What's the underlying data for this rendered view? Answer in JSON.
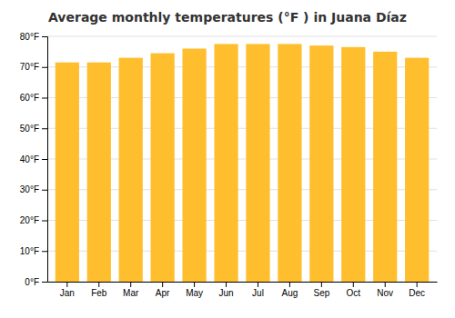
{
  "chart_data": {
    "type": "bar",
    "title": "Average monthly temperatures (°F ) in Juana Díaz",
    "categories": [
      "Jan",
      "Feb",
      "Mar",
      "Apr",
      "May",
      "Jun",
      "Jul",
      "Aug",
      "Sep",
      "Oct",
      "Nov",
      "Dec"
    ],
    "values": [
      71.5,
      71.5,
      73,
      74.5,
      76,
      77.5,
      77.5,
      77.5,
      77,
      76.5,
      75,
      73
    ],
    "color": "#FFBE2E",
    "ylim": [
      0,
      80
    ],
    "yticks": [
      {
        "value": 0,
        "label": "0°F"
      },
      {
        "value": 10,
        "label": "10°F"
      },
      {
        "value": 20,
        "label": "20°F"
      },
      {
        "value": 30,
        "label": "30°F"
      },
      {
        "value": 40,
        "label": "40°F"
      },
      {
        "value": 50,
        "label": "50°F"
      },
      {
        "value": 60,
        "label": "60°F"
      },
      {
        "value": 70,
        "label": "70°F"
      },
      {
        "value": 80,
        "label": "80°F"
      }
    ],
    "grid": true
  }
}
